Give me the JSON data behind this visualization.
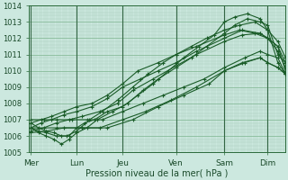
{
  "xlabel": "Pression niveau de la mer( hPa )",
  "bg_color": "#cce8df",
  "plot_bg_color": "#cce8df",
  "grid_major_color": "#88bb99",
  "grid_minor_color": "#aaccbb",
  "line_color": "#1a5c28",
  "ylim": [
    1005,
    1014
  ],
  "yticks": [
    1005,
    1006,
    1007,
    1008,
    1009,
    1010,
    1011,
    1012,
    1013,
    1014
  ],
  "day_labels": [
    "Mer",
    "Lun",
    "Jeu",
    "Ven",
    "Sam",
    "Dim"
  ],
  "day_positions": [
    0.0,
    0.18,
    0.36,
    0.57,
    0.76,
    0.93
  ],
  "xlim": [
    -0.01,
    1.0
  ],
  "series": [
    {
      "x": [
        0.0,
        0.03,
        0.06,
        0.09,
        0.12,
        0.15,
        0.18,
        0.21,
        0.25,
        0.3,
        0.36,
        0.42,
        0.48,
        0.54,
        0.6,
        0.66,
        0.72,
        0.76,
        0.8,
        0.85,
        0.9,
        0.93,
        0.97,
        1.0
      ],
      "y": [
        1006.8,
        1006.5,
        1006.3,
        1006.2,
        1006.0,
        1006.0,
        1006.5,
        1006.8,
        1007.0,
        1007.5,
        1007.8,
        1008.5,
        1009.2,
        1010.0,
        1010.8,
        1011.5,
        1012.2,
        1013.0,
        1013.3,
        1013.5,
        1013.2,
        1012.5,
        1010.5,
        1009.8
      ]
    },
    {
      "x": [
        0.0,
        0.03,
        0.06,
        0.09,
        0.12,
        0.15,
        0.18,
        0.22,
        0.26,
        0.32,
        0.38,
        0.44,
        0.5,
        0.57,
        0.63,
        0.69,
        0.76,
        0.8,
        0.85,
        0.9,
        0.93,
        0.97,
        1.0
      ],
      "y": [
        1006.5,
        1006.2,
        1006.0,
        1005.8,
        1005.5,
        1005.8,
        1006.2,
        1006.5,
        1007.0,
        1007.5,
        1008.0,
        1008.8,
        1009.5,
        1010.2,
        1010.8,
        1011.5,
        1012.3,
        1012.8,
        1013.2,
        1013.0,
        1012.8,
        1011.0,
        1010.5
      ]
    },
    {
      "x": [
        0.0,
        0.03,
        0.06,
        0.1,
        0.14,
        0.18,
        0.23,
        0.28,
        0.34,
        0.4,
        0.46,
        0.52,
        0.57,
        0.63,
        0.69,
        0.76,
        0.82,
        0.88,
        0.93,
        0.97,
        1.0
      ],
      "y": [
        1006.5,
        1006.3,
        1006.2,
        1006.0,
        1006.0,
        1006.3,
        1007.0,
        1007.5,
        1008.2,
        1009.0,
        1009.8,
        1010.5,
        1011.0,
        1011.5,
        1012.0,
        1012.5,
        1012.8,
        1013.0,
        1012.5,
        1011.8,
        1010.8
      ]
    },
    {
      "x": [
        0.0,
        0.04,
        0.08,
        0.13,
        0.18,
        0.24,
        0.3,
        0.36,
        0.42,
        0.5,
        0.57,
        0.65,
        0.76,
        0.82,
        0.88,
        0.93,
        0.97,
        1.0
      ],
      "y": [
        1006.8,
        1007.0,
        1007.2,
        1007.5,
        1007.8,
        1008.0,
        1008.5,
        1009.2,
        1010.0,
        1010.5,
        1011.0,
        1011.5,
        1012.2,
        1012.5,
        1012.3,
        1012.0,
        1011.2,
        1010.2
      ]
    },
    {
      "x": [
        0.0,
        0.04,
        0.08,
        0.13,
        0.18,
        0.24,
        0.3,
        0.36,
        0.43,
        0.5,
        0.57,
        0.65,
        0.76,
        0.83,
        0.9,
        0.93,
        0.97,
        1.0
      ],
      "y": [
        1006.5,
        1006.8,
        1007.0,
        1007.3,
        1007.5,
        1007.8,
        1008.3,
        1009.0,
        1009.5,
        1010.0,
        1010.5,
        1011.2,
        1012.0,
        1012.5,
        1012.3,
        1012.0,
        1011.5,
        1010.5
      ]
    },
    {
      "x": [
        0.0,
        0.05,
        0.1,
        0.15,
        0.2,
        0.27,
        0.34,
        0.4,
        0.48,
        0.57,
        0.65,
        0.76,
        0.83,
        0.9,
        0.93,
        0.97,
        1.0
      ],
      "y": [
        1006.3,
        1006.5,
        1006.8,
        1007.0,
        1007.2,
        1007.5,
        1008.0,
        1008.8,
        1009.5,
        1010.3,
        1011.0,
        1011.8,
        1012.2,
        1012.3,
        1012.0,
        1011.5,
        1010.0
      ]
    },
    {
      "x": [
        0.0,
        0.05,
        0.1,
        0.16,
        0.22,
        0.28,
        0.36,
        0.44,
        0.52,
        0.6,
        0.68,
        0.76,
        0.84,
        0.9,
        0.93,
        0.97,
        1.0
      ],
      "y": [
        1007.0,
        1007.0,
        1007.0,
        1007.0,
        1007.0,
        1007.0,
        1007.5,
        1008.0,
        1008.5,
        1009.0,
        1009.5,
        1010.2,
        1010.8,
        1011.2,
        1011.0,
        1010.8,
        1009.8
      ]
    },
    {
      "x": [
        0.0,
        0.06,
        0.13,
        0.2,
        0.27,
        0.36,
        0.45,
        0.55,
        0.65,
        0.76,
        0.84,
        0.9,
        0.93,
        0.97,
        1.0
      ],
      "y": [
        1006.2,
        1006.3,
        1006.5,
        1006.5,
        1006.5,
        1007.0,
        1007.5,
        1008.2,
        1009.0,
        1010.0,
        1010.5,
        1010.8,
        1010.5,
        1010.2,
        1009.8
      ]
    },
    {
      "x": [
        0.0,
        0.1,
        0.2,
        0.3,
        0.4,
        0.5,
        0.6,
        0.7,
        0.76,
        0.83,
        0.9,
        0.93,
        0.97,
        1.0
      ],
      "y": [
        1006.5,
        1006.5,
        1006.5,
        1006.5,
        1007.0,
        1007.8,
        1008.5,
        1009.2,
        1010.0,
        1010.5,
        1010.8,
        1010.5,
        1010.2,
        1009.8
      ]
    }
  ]
}
